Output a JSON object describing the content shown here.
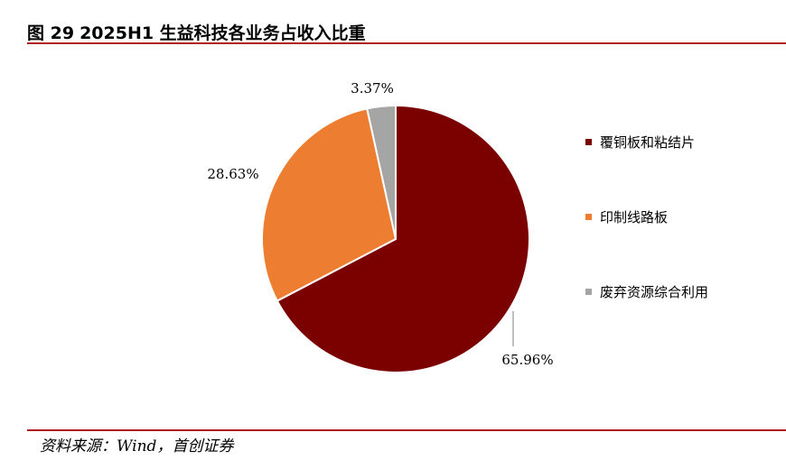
{
  "header": {
    "figure_number": "图 29",
    "title": "2025H1 生益科技各业务占收入比重"
  },
  "footer": {
    "source": "资料来源：Wind，首创证券"
  },
  "chart_data": {
    "type": "pie",
    "title": "2025H1 生益科技各业务占收入比重",
    "slices": [
      {
        "label": "覆铜板和粘结片",
        "value": 65.96,
        "value_label": "65.96%",
        "color": "#7b0000"
      },
      {
        "label": "印制线路板",
        "value": 28.63,
        "value_label": "28.63%",
        "color": "#ed7d31"
      },
      {
        "label": "废弃资源综合利用",
        "value": 3.37,
        "value_label": "3.37%",
        "color": "#a5a5a5"
      }
    ],
    "start_angle_deg": 0,
    "direction": "clockwise",
    "legend_position": "right"
  }
}
